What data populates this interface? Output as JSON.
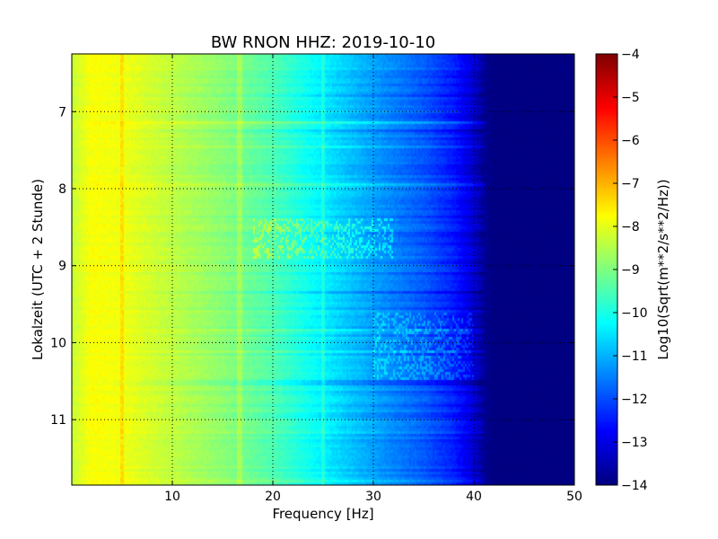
{
  "chart_data": {
    "type": "heatmap",
    "title": "BW RNON HHZ: 2019-10-10",
    "xlabel": "Frequency [Hz]",
    "ylabel": "Lokalzeit (UTC + 2 Stunde)",
    "xlim": [
      0,
      50
    ],
    "ylim": [
      11.85,
      6.25
    ],
    "x_ticks": [
      10,
      20,
      30,
      40,
      50
    ],
    "y_ticks": [
      7,
      8,
      9,
      10,
      11
    ],
    "grid": true,
    "colormap": "jet",
    "colorbar": {
      "label": "Log10(Sqrt(m**2/s**2/Hz))",
      "range": [
        -14,
        -4
      ],
      "ticks": [
        -4,
        -5,
        -6,
        -7,
        -8,
        -9,
        -10,
        -11,
        -12,
        -13,
        -14
      ]
    },
    "psd_profile": {
      "frequency_hz": [
        0,
        2,
        5,
        10,
        15,
        20,
        25,
        30,
        35,
        38,
        40,
        41,
        42,
        50
      ],
      "log10_amplitude": [
        -8.3,
        -7.8,
        -7.9,
        -8.4,
        -8.9,
        -9.5,
        -10.4,
        -11.2,
        -11.9,
        -12.5,
        -13.2,
        -13.8,
        -14,
        -14
      ]
    },
    "spectral_lines_hz": [
      5,
      16.7,
      25
    ],
    "disturbance_bands": [
      {
        "time_start": 8.4,
        "time_end": 8.9,
        "freq_start": 18,
        "freq_end": 32,
        "delta_log10": 0.9
      },
      {
        "time_start": 9.6,
        "time_end": 10.5,
        "freq_start": 30,
        "freq_end": 40,
        "delta_log10": 0.7
      }
    ]
  }
}
